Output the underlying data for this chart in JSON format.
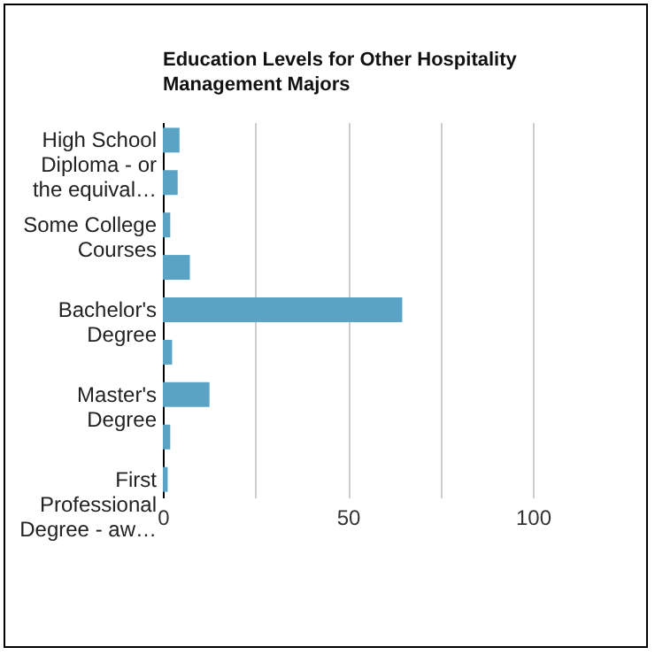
{
  "chart_data": {
    "type": "bar",
    "orientation": "horizontal",
    "title": "Education Levels for Other Hospitality Management Majors",
    "categories": [
      "High School Diploma - or the equival…",
      null,
      "Some College Courses",
      null,
      "Bachelor's Degree",
      null,
      "Master's Degree",
      null,
      "First Professional Degree - aw…"
    ],
    "values": [
      4.5,
      4,
      2,
      7.3,
      64.7,
      2.5,
      12.6,
      2,
      1.3
    ],
    "color": "#5ba3c4",
    "xlim": [
      0,
      100
    ],
    "xticks": [
      0,
      {
        "value": 25,
        "label": null
      },
      50,
      {
        "value": 75,
        "label": null
      },
      100
    ],
    "grid": "x"
  }
}
